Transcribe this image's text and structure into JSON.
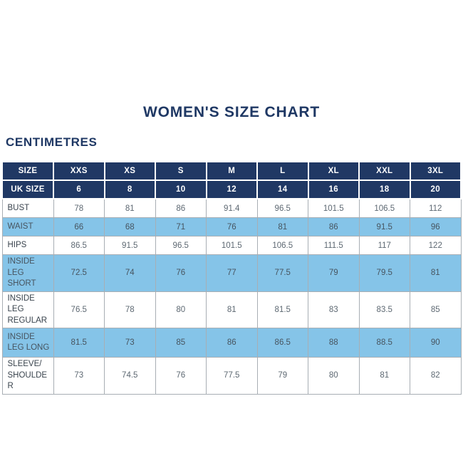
{
  "page": {
    "title": "WOMEN'S SIZE CHART",
    "unit_label": "CENTIMETRES"
  },
  "colors": {
    "navy_header": "#203864",
    "light_blue_row": "#85c4e8",
    "title_navy": "#1f3864",
    "border_gray": "#a8aeb4",
    "body_text": "#5d6872",
    "label_text": "#39434d"
  },
  "chart_data": {
    "type": "table",
    "title": "WOMEN'S SIZE CHART",
    "unit": "CENTIMETRES",
    "header_rows": [
      {
        "label": "SIZE",
        "values": [
          "XXS",
          "XS",
          "S",
          "M",
          "L",
          "XL",
          "XXL",
          "3XL"
        ]
      },
      {
        "label": "UK SIZE",
        "values": [
          "6",
          "8",
          "10",
          "12",
          "14",
          "16",
          "18",
          "20"
        ]
      }
    ],
    "rows": [
      {
        "label": "BUST",
        "shaded": false,
        "tall": false,
        "values": [
          "78",
          "81",
          "86",
          "91.4",
          "96.5",
          "101.5",
          "106.5",
          "112"
        ]
      },
      {
        "label": "WAIST",
        "shaded": true,
        "tall": false,
        "values": [
          "66",
          "68",
          "71",
          "76",
          "81",
          "86",
          "91.5",
          "96"
        ]
      },
      {
        "label": "HIPS",
        "shaded": false,
        "tall": false,
        "values": [
          "86.5",
          "91.5",
          "96.5",
          "101.5",
          "106.5",
          "111.5",
          "117",
          "122"
        ]
      },
      {
        "label": "INSIDE LEG SHORT",
        "shaded": true,
        "tall": true,
        "values": [
          "72.5",
          "74",
          "76",
          "77",
          "77.5",
          "79",
          "79.5",
          "81"
        ]
      },
      {
        "label": "INSIDE LEG REGULAR",
        "shaded": false,
        "tall": true,
        "values": [
          "76.5",
          "78",
          "80",
          "81",
          "81.5",
          "83",
          "83.5",
          "85"
        ]
      },
      {
        "label": "INSIDE LEG LONG",
        "shaded": true,
        "tall": true,
        "values": [
          "81.5",
          "73",
          "85",
          "86",
          "86.5",
          "88",
          "88.5",
          "90"
        ]
      },
      {
        "label": "SLEEVE/ SHOULDER",
        "shaded": false,
        "tall": true,
        "values": [
          "73",
          "74.5",
          "76",
          "77.5",
          "79",
          "80",
          "81",
          "82"
        ]
      }
    ]
  }
}
